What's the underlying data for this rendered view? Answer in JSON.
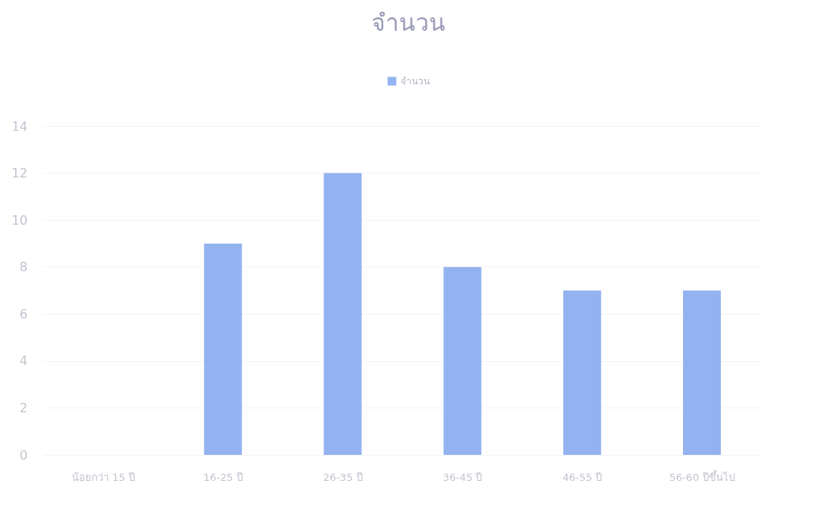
{
  "chart_data": {
    "type": "bar",
    "title": "จำนวน",
    "categories": [
      "น้อยกว่า 15 ปี",
      "16-25 ปี",
      "26-35 ปี",
      "36-45 ปี",
      "46-55 ปี",
      "56-60 ปีขึ้นไป"
    ],
    "series": [
      {
        "name": "จำนวน",
        "color": "#93b2f0",
        "values": [
          0,
          9,
          12,
          8,
          7,
          7
        ]
      }
    ],
    "ylim": [
      0,
      14
    ],
    "yticks": [
      0,
      2,
      4,
      6,
      8,
      10,
      12,
      14
    ],
    "grid": "y",
    "legend": "top"
  }
}
